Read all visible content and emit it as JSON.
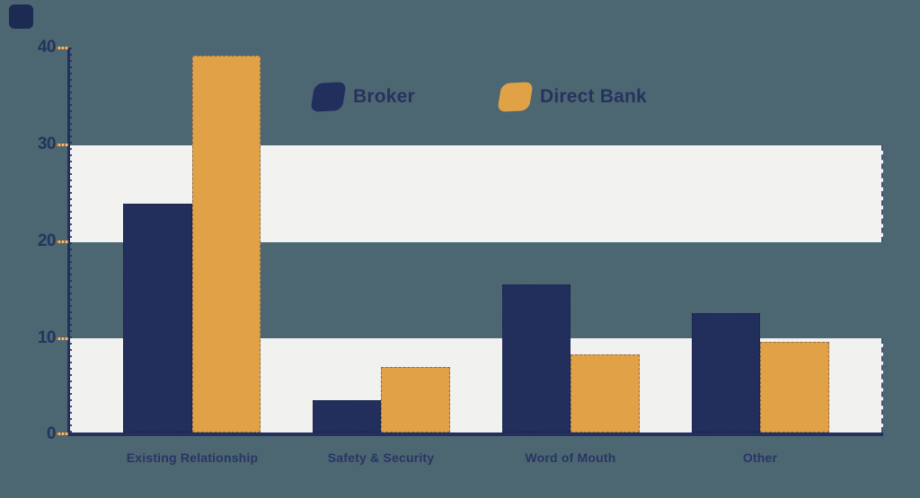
{
  "colors": {
    "background": "#4c6772",
    "broker_navy": "#222e5c",
    "direct_bank_orange": "#e1a147",
    "band_light": "#f2f2f1",
    "axis_navy": "#232f5e",
    "text_navy": "#27325e",
    "tick_orange": "#d9995c",
    "corner_logo": "#1d2a52"
  },
  "legend": {
    "items": [
      {
        "label": "Broker",
        "color": "#222e5c",
        "swatch": "skewed-rounded-square"
      },
      {
        "label": "Direct Bank",
        "color": "#e1a147",
        "swatch": "skewed-rounded-square"
      }
    ]
  },
  "y_axis": {
    "ticks": [
      "40",
      "30",
      "20",
      "10",
      "0"
    ]
  },
  "chart_data": {
    "type": "bar",
    "title": "",
    "xlabel": "",
    "ylabel": "",
    "categories": [
      "Existing Relationship",
      "Safety & Security",
      "Word of Mouth",
      "Other"
    ],
    "series": [
      {
        "name": "Broker",
        "color": "#222e5c",
        "values": [
          23.8,
          3.4,
          15.4,
          12.4
        ]
      },
      {
        "name": "Direct Bank",
        "color": "#e1a147",
        "values": [
          39.2,
          6.8,
          8.1,
          9.4
        ]
      }
    ],
    "ylim": [
      0,
      40
    ],
    "yticks": [
      0,
      10,
      20,
      30,
      40
    ],
    "legend_position": "top-center",
    "grid": "horizontal-bands",
    "bands": [
      [
        20,
        30
      ],
      [
        0,
        10
      ]
    ]
  }
}
